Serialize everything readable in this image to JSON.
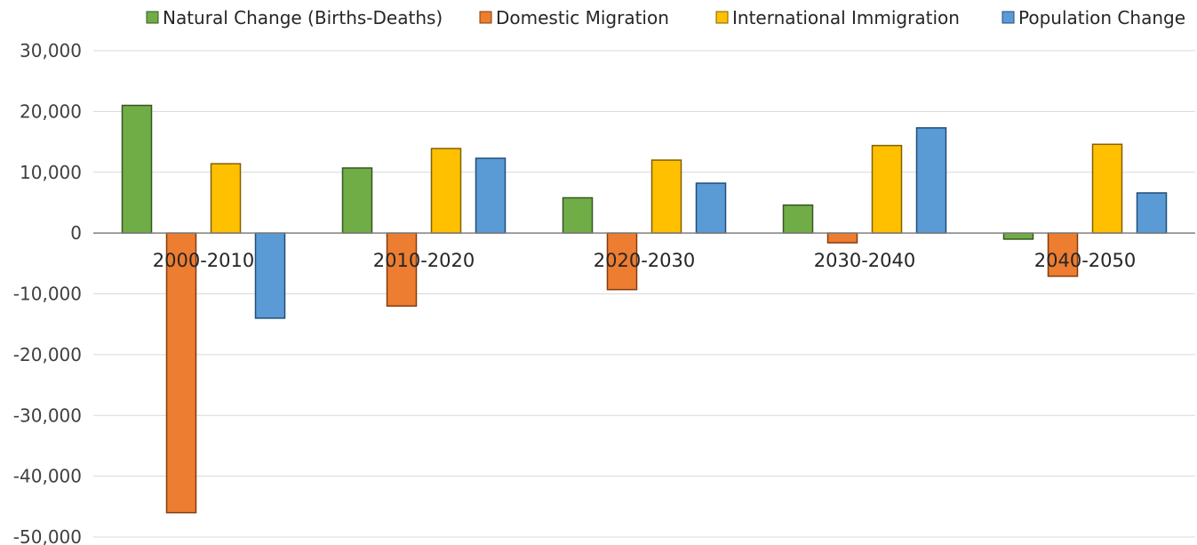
{
  "chart_data": {
    "type": "bar",
    "categories": [
      "2000-2010",
      "2010-2020",
      "2020-2030",
      "2030-2040",
      "2040-2050"
    ],
    "series": [
      {
        "name": "Natural Change (Births-Deaths)",
        "color": "#70ad47",
        "stroke": "#375623",
        "values": [
          21000,
          10700,
          5800,
          4600,
          -1000
        ]
      },
      {
        "name": "Domestic Migration",
        "color": "#ed7d31",
        "stroke": "#843c0c",
        "values": [
          -46000,
          -12000,
          -9300,
          -1600,
          -7100
        ]
      },
      {
        "name": "International Immigration",
        "color": "#ffc000",
        "stroke": "#806000",
        "values": [
          11400,
          13900,
          12000,
          14400,
          14600
        ]
      },
      {
        "name": "Population Change",
        "color": "#5b9bd5",
        "stroke": "#1f4e79",
        "values": [
          -14000,
          12300,
          8200,
          17300,
          6600
        ]
      }
    ],
    "y_ticks": [
      "30,000",
      "20,000",
      "10,000",
      "0",
      "-10,000",
      "-20,000",
      "-30,000",
      "-40,000",
      "-50,000"
    ],
    "ylim": [
      -50000,
      30000
    ],
    "grid": true,
    "legend_position": "top"
  }
}
